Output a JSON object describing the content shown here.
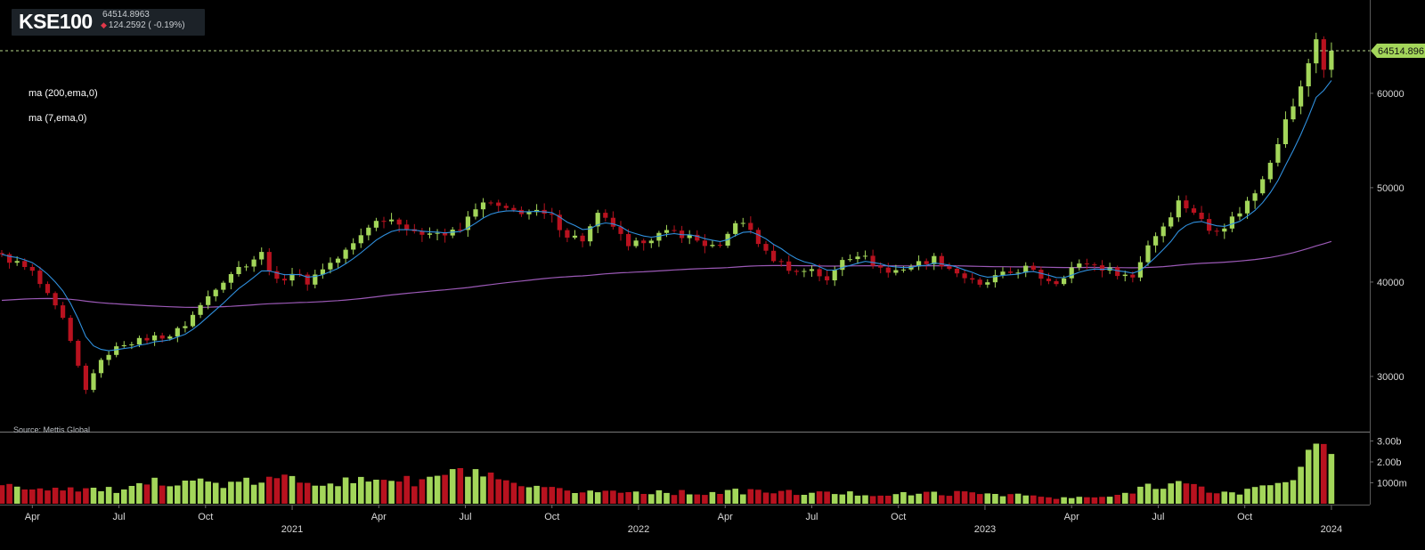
{
  "header": {
    "symbol": "KSE100",
    "price": "64514.8963",
    "change": "124.2592 ( -0.19%)",
    "change_direction": "down"
  },
  "indicators": [
    {
      "label": "ma (200,ema,0)",
      "color": "#9b59b6"
    },
    {
      "label": "ma (7,ema,0)",
      "color": "#2f8fdd"
    }
  ],
  "source": "Source: Mettis Global",
  "price_tag": "64514.896",
  "colors": {
    "up": "#a3d65a",
    "down": "#b8121f",
    "background": "#000000"
  },
  "chart_data": {
    "type": "candlestick",
    "interval": "weekly",
    "y_axis": {
      "range": [
        25000,
        68000
      ],
      "ticks": [
        "30000",
        "40000",
        "50000",
        "60000"
      ]
    },
    "volume_axis": {
      "ticks": [
        "1000m",
        "2.00b",
        "3.00b"
      ]
    },
    "x_axis": {
      "ticks": [
        "Apr",
        "Jul",
        "Oct",
        "2021",
        "Apr",
        "Jul",
        "Oct",
        "2022",
        "Apr",
        "Jul",
        "Oct",
        "2023",
        "Apr",
        "Jul",
        "Oct",
        "2024"
      ]
    },
    "last_price": 64514.896,
    "anchors": [
      [
        0,
        42700
      ],
      [
        2,
        42000
      ],
      [
        4,
        41000
      ],
      [
        6,
        38500
      ],
      [
        8,
        36000
      ],
      [
        10,
        31000
      ],
      [
        11,
        28500
      ],
      [
        12,
        30500
      ],
      [
        14,
        32500
      ],
      [
        16,
        33500
      ],
      [
        18,
        33800
      ],
      [
        20,
        34200
      ],
      [
        22,
        34300
      ],
      [
        24,
        35500
      ],
      [
        26,
        37500
      ],
      [
        28,
        39500
      ],
      [
        30,
        41000
      ],
      [
        32,
        42000
      ],
      [
        34,
        43000
      ],
      [
        36,
        40000
      ],
      [
        38,
        41000
      ],
      [
        40,
        40000
      ],
      [
        42,
        41500
      ],
      [
        44,
        42500
      ],
      [
        46,
        44000
      ],
      [
        48,
        46000
      ],
      [
        50,
        46800
      ],
      [
        52,
        46500
      ],
      [
        54,
        45000
      ],
      [
        56,
        45500
      ],
      [
        58,
        45000
      ],
      [
        60,
        45500
      ],
      [
        62,
        48000
      ],
      [
        64,
        48300
      ],
      [
        66,
        47500
      ],
      [
        68,
        47500
      ],
      [
        70,
        47300
      ],
      [
        72,
        46800
      ],
      [
        74,
        45000
      ],
      [
        76,
        44500
      ],
      [
        78,
        47000
      ],
      [
        80,
        46000
      ],
      [
        82,
        43500
      ],
      [
        84,
        44500
      ],
      [
        86,
        45000
      ],
      [
        88,
        45300
      ],
      [
        90,
        44800
      ],
      [
        92,
        44000
      ],
      [
        94,
        43500
      ],
      [
        96,
        46500
      ],
      [
        98,
        45500
      ],
      [
        100,
        43000
      ],
      [
        102,
        42000
      ],
      [
        104,
        41000
      ],
      [
        106,
        41500
      ],
      [
        108,
        40000
      ],
      [
        110,
        42500
      ],
      [
        112,
        43000
      ],
      [
        114,
        42000
      ],
      [
        116,
        41000
      ],
      [
        118,
        41500
      ],
      [
        120,
        42000
      ],
      [
        122,
        42500
      ],
      [
        124,
        41500
      ],
      [
        126,
        40500
      ],
      [
        128,
        39500
      ],
      [
        130,
        40500
      ],
      [
        132,
        41000
      ],
      [
        134,
        41500
      ],
      [
        136,
        40500
      ],
      [
        138,
        40000
      ],
      [
        140,
        41500
      ],
      [
        142,
        42000
      ],
      [
        144,
        41500
      ],
      [
        146,
        41000
      ],
      [
        148,
        40500
      ],
      [
        150,
        44000
      ],
      [
        152,
        46000
      ],
      [
        154,
        48500
      ],
      [
        156,
        47500
      ],
      [
        158,
        45500
      ],
      [
        160,
        46000
      ],
      [
        162,
        47500
      ],
      [
        164,
        49500
      ],
      [
        166,
        53000
      ],
      [
        168,
        57000
      ],
      [
        170,
        60500
      ],
      [
        172,
        66000
      ],
      [
        173,
        62500
      ],
      [
        174,
        64515
      ]
    ],
    "volume_profile": [
      [
        0,
        0.8
      ],
      [
        10,
        0.75
      ],
      [
        14,
        0.65
      ],
      [
        16,
        0.6
      ],
      [
        20,
        1.0
      ],
      [
        24,
        1.2
      ],
      [
        27,
        1.0
      ],
      [
        30,
        0.9
      ],
      [
        34,
        1.1
      ],
      [
        38,
        1.2
      ],
      [
        42,
        1.1
      ],
      [
        46,
        1.0
      ],
      [
        50,
        1.3
      ],
      [
        54,
        1.0
      ],
      [
        58,
        1.4
      ],
      [
        62,
        1.5
      ],
      [
        66,
        0.9
      ],
      [
        70,
        0.7
      ],
      [
        74,
        0.6
      ],
      [
        78,
        0.6
      ],
      [
        82,
        0.55
      ],
      [
        86,
        0.6
      ],
      [
        90,
        0.5
      ],
      [
        94,
        0.55
      ],
      [
        98,
        0.6
      ],
      [
        102,
        0.55
      ],
      [
        106,
        0.5
      ],
      [
        110,
        0.5
      ],
      [
        114,
        0.45
      ],
      [
        118,
        0.45
      ],
      [
        122,
        0.5
      ],
      [
        126,
        0.5
      ],
      [
        130,
        0.5
      ],
      [
        134,
        0.4
      ],
      [
        138,
        0.25
      ],
      [
        142,
        0.3
      ],
      [
        146,
        0.35
      ],
      [
        150,
        0.9
      ],
      [
        154,
        1.0
      ],
      [
        158,
        0.6
      ],
      [
        162,
        0.5
      ],
      [
        166,
        1.0
      ],
      [
        168,
        1.2
      ],
      [
        170,
        1.6
      ],
      [
        172,
        2.8
      ],
      [
        173,
        2.6
      ],
      [
        174,
        2.0
      ]
    ]
  }
}
